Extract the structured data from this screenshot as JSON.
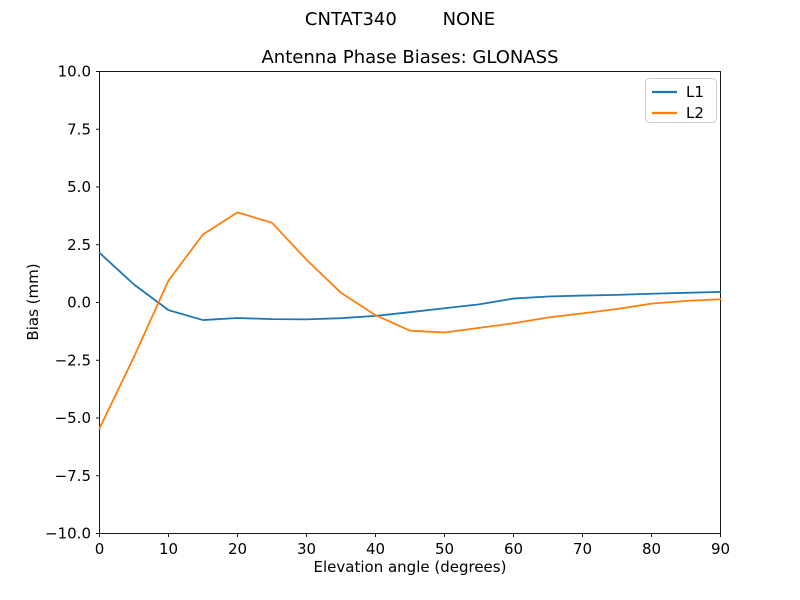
{
  "chart_data": {
    "type": "line",
    "suptitle": "CNTAT340        NONE",
    "title": "Antenna Phase Biases: GLONASS",
    "xlabel": "Elevation angle (degrees)",
    "ylabel": "Bias (mm)",
    "xlim": [
      0,
      90
    ],
    "ylim": [
      -10,
      10
    ],
    "xticks": [
      0,
      10,
      20,
      30,
      40,
      50,
      60,
      70,
      80,
      90
    ],
    "yticks": [
      -10,
      -7.5,
      -5,
      -2.5,
      0,
      2.5,
      5,
      7.5,
      10
    ],
    "grid": false,
    "legend": {
      "position": "upper right",
      "entries": [
        "L1",
        "L2"
      ]
    },
    "x": [
      0,
      5,
      10,
      15,
      20,
      25,
      30,
      35,
      40,
      45,
      50,
      55,
      60,
      65,
      70,
      75,
      80,
      85,
      90
    ],
    "series": [
      {
        "name": "L1",
        "color": "#1f77b4",
        "values": [
          2.15,
          0.78,
          -0.33,
          -0.76,
          -0.67,
          -0.72,
          -0.73,
          -0.68,
          -0.58,
          -0.42,
          -0.25,
          -0.08,
          0.17,
          0.26,
          0.3,
          0.33,
          0.38,
          0.42,
          0.46
        ]
      },
      {
        "name": "L2",
        "color": "#ff7f0e",
        "values": [
          -5.45,
          -2.35,
          0.95,
          2.95,
          3.9,
          3.45,
          1.85,
          0.42,
          -0.55,
          -1.22,
          -1.3,
          -1.1,
          -0.9,
          -0.65,
          -0.47,
          -0.28,
          -0.05,
          0.07,
          0.14
        ]
      }
    ],
    "axis_color": "#000000",
    "background_color": "#ffffff",
    "legend_border_color": "#cccccc"
  }
}
